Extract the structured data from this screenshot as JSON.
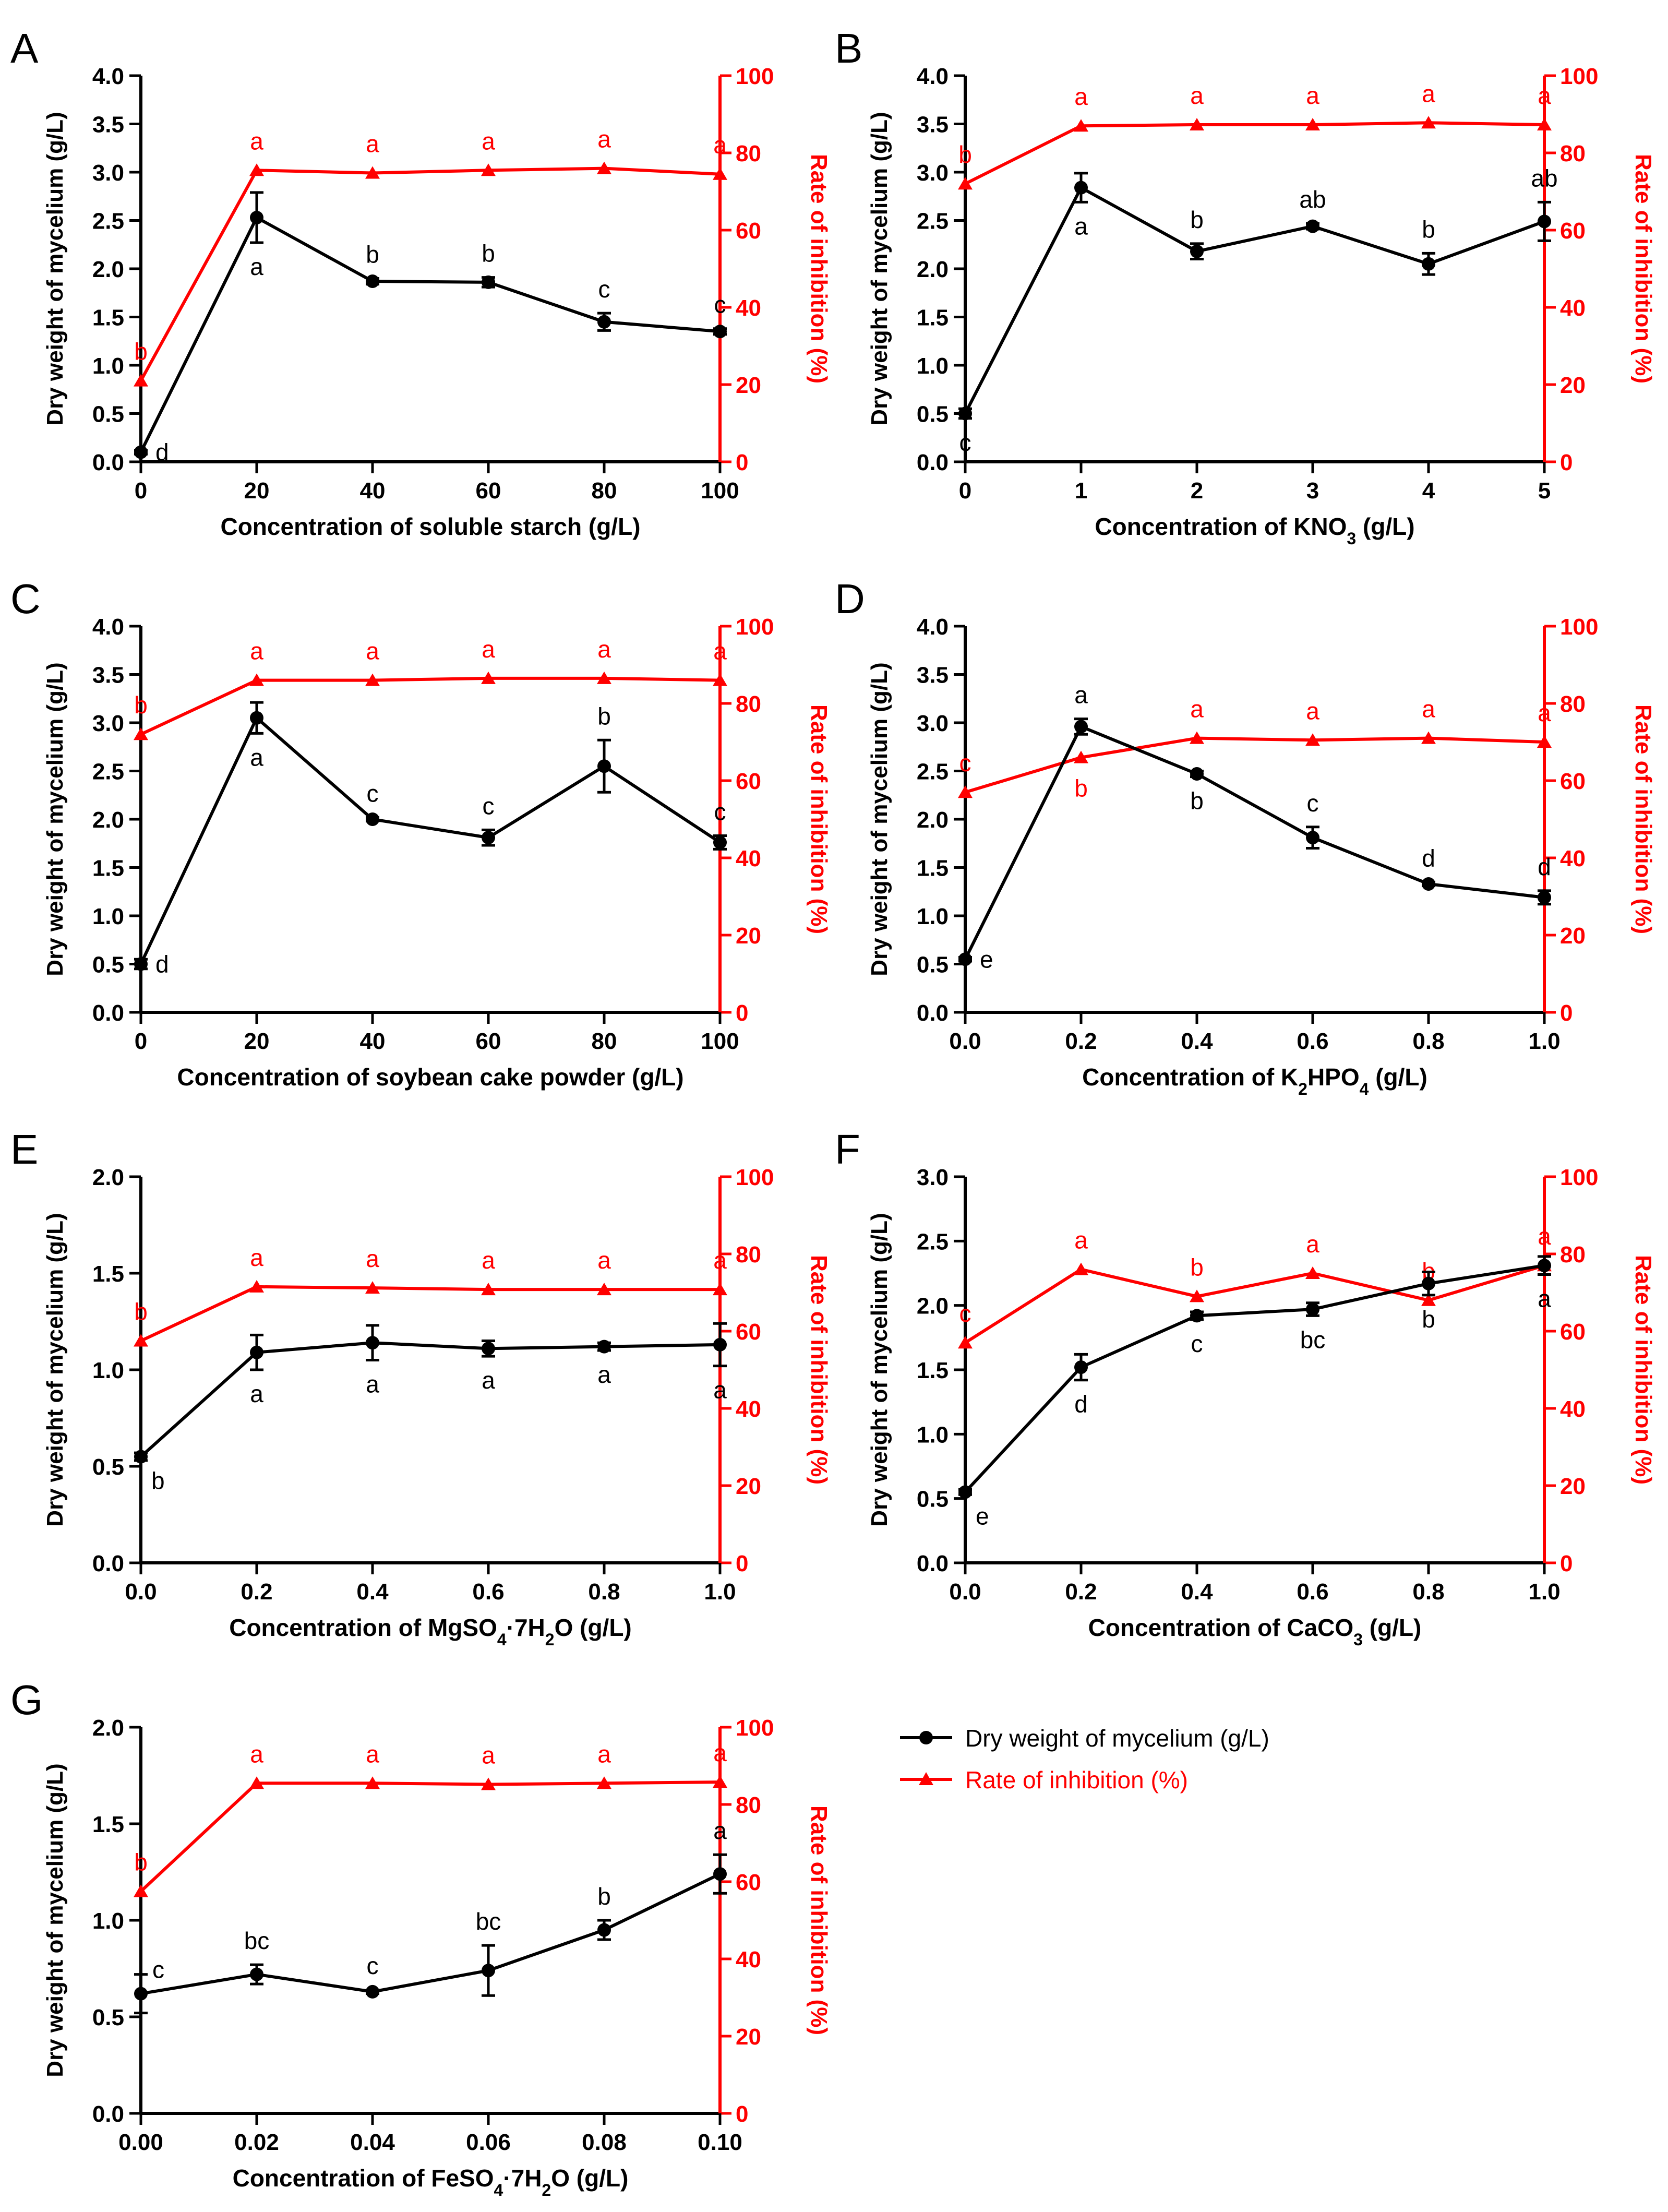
{
  "figure": {
    "legend": {
      "items": [
        {
          "label": "Dry weight of mycelium (g/L)",
          "color": "#000000",
          "marker": "circle"
        },
        {
          "label": "Rate of inhibition (%)",
          "color": "#ff0000",
          "marker": "triangle"
        }
      ]
    }
  },
  "chart_data": [
    {
      "panel": "A",
      "type": "line",
      "xlabel": "Concentration of soluble starch (g/L)",
      "ylabel_left": "Dry weight of mycelium (g/L)",
      "ylabel_right": "Rate of inhibition (%)",
      "x": [
        0,
        20,
        40,
        60,
        80,
        100
      ],
      "xticks": [
        "0",
        "20",
        "40",
        "60",
        "80",
        "100"
      ],
      "ylim_left": [
        0,
        4
      ],
      "yticks_left": [
        "0.0",
        "0.5",
        "1.0",
        "1.5",
        "2.0",
        "2.5",
        "3.0",
        "3.5",
        "4.0"
      ],
      "ylim_right": [
        0,
        100
      ],
      "yticks_right": [
        "0",
        "20",
        "40",
        "60",
        "80",
        "100"
      ],
      "dry_weight": {
        "values": [
          0.1,
          2.53,
          1.87,
          1.86,
          1.45,
          1.35
        ],
        "errors": [
          0.02,
          0.26,
          0.03,
          0.05,
          0.09,
          0.03
        ],
        "letters": [
          "d",
          "a",
          "b",
          "b",
          "c",
          "c"
        ],
        "letter_pos": [
          "right",
          "below",
          "above",
          "above",
          "above",
          "above"
        ]
      },
      "inhibition": {
        "values": [
          21,
          75.5,
          74.8,
          75.5,
          76,
          74.5
        ],
        "letters": [
          "b",
          "a",
          "a",
          "a",
          "a",
          "a"
        ]
      }
    },
    {
      "panel": "B",
      "type": "line",
      "xlabel": "Concentration of KNO₃ (g/L)",
      "ylabel_left": "Dry weight of mycelium (g/L)",
      "ylabel_right": "Rate of inhibition (%)",
      "x": [
        0,
        1,
        2,
        3,
        4,
        5
      ],
      "xticks": [
        "0",
        "1",
        "2",
        "3",
        "4",
        "5"
      ],
      "ylim_left": [
        0,
        4
      ],
      "yticks_left": [
        "0.0",
        "0.5",
        "1.0",
        "1.5",
        "2.0",
        "2.5",
        "3.0",
        "3.5",
        "4.0"
      ],
      "ylim_right": [
        0,
        100
      ],
      "yticks_right": [
        "0",
        "20",
        "40",
        "60",
        "80",
        "100"
      ],
      "dry_weight": {
        "values": [
          0.5,
          2.84,
          2.18,
          2.44,
          2.05,
          2.49
        ],
        "errors": [
          0.05,
          0.15,
          0.08,
          0.03,
          0.11,
          0.2
        ],
        "letters": [
          "c",
          "a",
          "b",
          "ab",
          "b",
          "ab"
        ],
        "letter_pos": [
          "below",
          "below",
          "above",
          "above",
          "above",
          "above"
        ]
      },
      "inhibition": {
        "values": [
          72,
          87,
          87.3,
          87.3,
          87.8,
          87.3
        ],
        "letters": [
          "b",
          "a",
          "a",
          "a",
          "a",
          "a"
        ]
      }
    },
    {
      "panel": "C",
      "type": "line",
      "xlabel": "Concentration of soybean cake powder (g/L)",
      "ylabel_left": "Dry weight of mycelium (g/L)",
      "ylabel_right": "Rate of inhibition (%)",
      "x": [
        0,
        20,
        40,
        60,
        80,
        100
      ],
      "xticks": [
        "0",
        "20",
        "40",
        "60",
        "80",
        "100"
      ],
      "ylim_left": [
        0,
        4
      ],
      "yticks_left": [
        "0.0",
        "0.5",
        "1.0",
        "1.5",
        "2.0",
        "2.5",
        "3.0",
        "3.5",
        "4.0"
      ],
      "ylim_right": [
        0,
        100
      ],
      "yticks_right": [
        "0",
        "20",
        "40",
        "60",
        "80",
        "100"
      ],
      "dry_weight": {
        "values": [
          0.5,
          3.05,
          2.0,
          1.81,
          2.55,
          1.76
        ],
        "errors": [
          0.05,
          0.16,
          0.02,
          0.08,
          0.27,
          0.07
        ],
        "letters": [
          "d",
          "a",
          "c",
          "c",
          "b",
          "c"
        ],
        "letter_pos": [
          "right",
          "below",
          "above",
          "above",
          "above",
          "above"
        ]
      },
      "inhibition": {
        "values": [
          72,
          86,
          86,
          86.5,
          86.5,
          86
        ],
        "letters": [
          "b",
          "a",
          "a",
          "a",
          "a",
          "a"
        ]
      }
    },
    {
      "panel": "D",
      "type": "line",
      "xlabel": "Concentration of K₂HPO₄ (g/L)",
      "ylabel_left": "Dry weight of mycelium (g/L)",
      "ylabel_right": "Rate of inhibition (%)",
      "x": [
        0,
        0.2,
        0.4,
        0.6,
        0.8,
        1.0
      ],
      "xticks": [
        "0.0",
        "0.2",
        "0.4",
        "0.6",
        "0.8",
        "1.0"
      ],
      "ylim_left": [
        0,
        4
      ],
      "yticks_left": [
        "0.0",
        "0.5",
        "1.0",
        "1.5",
        "2.0",
        "2.5",
        "3.0",
        "3.5",
        "4.0"
      ],
      "ylim_right": [
        0,
        100
      ],
      "yticks_right": [
        "0",
        "20",
        "40",
        "60",
        "80",
        "100"
      ],
      "dry_weight": {
        "values": [
          0.55,
          2.96,
          2.47,
          1.81,
          1.33,
          1.19
        ],
        "errors": [
          0.02,
          0.08,
          0.03,
          0.11,
          0.02,
          0.07
        ],
        "letters": [
          "e",
          "a",
          "b",
          "c",
          "d",
          "d"
        ],
        "letter_pos": [
          "right",
          "above",
          "below",
          "above",
          "above",
          "above"
        ]
      },
      "inhibition": {
        "values": [
          57,
          66,
          71,
          70.5,
          71,
          70
        ],
        "letters": [
          "c",
          "b",
          "a",
          "a",
          "a",
          "a"
        ],
        "letter_pos": [
          "above",
          "below",
          "above",
          "above",
          "above",
          "above"
        ]
      }
    },
    {
      "panel": "E",
      "type": "line",
      "xlabel": "Concentration of MgSO₄·7H₂O (g/L)",
      "ylabel_left": "Dry weight of mycelium (g/L)",
      "ylabel_right": "Rate of inhibition (%)",
      "x": [
        0,
        0.2,
        0.4,
        0.6,
        0.8,
        1.0
      ],
      "xticks": [
        "0.0",
        "0.2",
        "0.4",
        "0.6",
        "0.8",
        "1.0"
      ],
      "ylim_left": [
        0,
        2
      ],
      "yticks_left": [
        "0.0",
        "0.5",
        "1.0",
        "1.5",
        "2.0"
      ],
      "ylim_right": [
        0,
        100
      ],
      "yticks_right": [
        "0",
        "20",
        "40",
        "60",
        "80",
        "100"
      ],
      "dry_weight": {
        "values": [
          0.55,
          1.09,
          1.14,
          1.11,
          1.12,
          1.13
        ],
        "errors": [
          0.02,
          0.09,
          0.09,
          0.04,
          0.02,
          0.11
        ],
        "letters": [
          "b",
          "a",
          "a",
          "a",
          "a",
          "a"
        ],
        "letter_pos": [
          "belowright",
          "below",
          "below",
          "below",
          "below",
          "below"
        ]
      },
      "inhibition": {
        "values": [
          57.5,
          71.5,
          71.2,
          70.8,
          70.8,
          70.8
        ],
        "letters": [
          "b",
          "a",
          "a",
          "a",
          "a",
          "a"
        ]
      }
    },
    {
      "panel": "F",
      "type": "line",
      "xlabel": "Concentration of CaCO₃ (g/L)",
      "ylabel_left": "Dry weight of mycelium (g/L)",
      "ylabel_right": "Rate of inhibition (%)",
      "x": [
        0,
        0.2,
        0.4,
        0.6,
        0.8,
        1.0
      ],
      "xticks": [
        "0.0",
        "0.2",
        "0.4",
        "0.6",
        "0.8",
        "1.0"
      ],
      "ylim_left": [
        0,
        3
      ],
      "yticks_left": [
        "0.0",
        "0.5",
        "1.0",
        "1.5",
        "2.0",
        "2.5",
        "3.0"
      ],
      "ylim_right": [
        0,
        100
      ],
      "yticks_right": [
        "0",
        "20",
        "40",
        "60",
        "80",
        "100"
      ],
      "dry_weight": {
        "values": [
          0.55,
          1.52,
          1.92,
          1.97,
          2.17,
          2.31
        ],
        "errors": [
          0.02,
          0.1,
          0.03,
          0.05,
          0.09,
          0.07
        ],
        "letters": [
          "e",
          "d",
          "c",
          "bc",
          "b",
          "a"
        ],
        "letter_pos": [
          "belowright",
          "below",
          "below",
          "below",
          "below",
          "below"
        ]
      },
      "inhibition": {
        "values": [
          57,
          76,
          69,
          75,
          68,
          77
        ],
        "letters": [
          "c",
          "a",
          "b",
          "a",
          "b",
          "a"
        ]
      }
    },
    {
      "panel": "G",
      "type": "line",
      "xlabel": "Concentration of FeSO₄·7H₂O (g/L)",
      "ylabel_left": "Dry weight of mycelium (g/L)",
      "ylabel_right": "Rate of inhibition (%)",
      "x": [
        0,
        0.02,
        0.04,
        0.06,
        0.08,
        0.1
      ],
      "xticks": [
        "0.00",
        "0.02",
        "0.04",
        "0.06",
        "0.08",
        "0.10"
      ],
      "ylim_left": [
        0,
        2
      ],
      "yticks_left": [
        "0.0",
        "0.5",
        "1.0",
        "1.5",
        "2.0"
      ],
      "ylim_right": [
        0,
        100
      ],
      "yticks_right": [
        "0",
        "20",
        "40",
        "60",
        "80",
        "100"
      ],
      "dry_weight": {
        "values": [
          0.62,
          0.72,
          0.63,
          0.74,
          0.95,
          1.24
        ],
        "errors": [
          0.1,
          0.05,
          0.01,
          0.13,
          0.05,
          0.1
        ],
        "letters": [
          "c",
          "bc",
          "c",
          "bc",
          "b",
          "a"
        ],
        "letter_pos": [
          "aboveright",
          "above",
          "above",
          "above",
          "above",
          "above"
        ]
      },
      "inhibition": {
        "values": [
          57.5,
          85.5,
          85.5,
          85.2,
          85.5,
          85.8
        ],
        "letters": [
          "b",
          "a",
          "a",
          "a",
          "a",
          "a"
        ]
      }
    }
  ]
}
